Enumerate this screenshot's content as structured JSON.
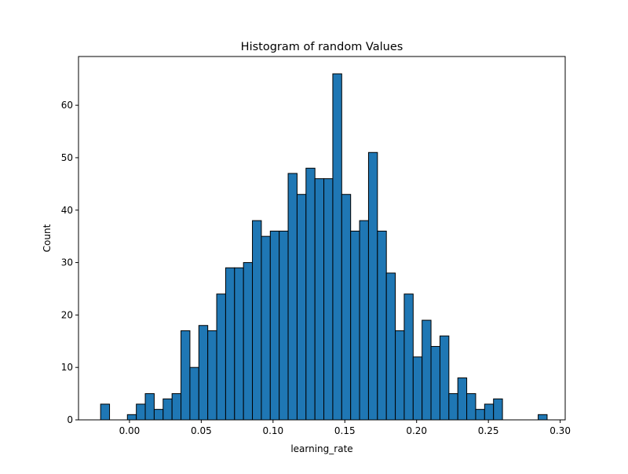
{
  "chart_data": {
    "type": "bar",
    "title": "Histogram of random Values",
    "xlabel": "learning_rate",
    "ylabel": "Count",
    "xlim": [
      -0.0355,
      0.3035
    ],
    "ylim": [
      0,
      69.3
    ],
    "x_ticks": [
      0.0,
      0.05,
      0.1,
      0.15,
      0.2,
      0.25,
      0.3
    ],
    "x_tick_labels": [
      "0.00",
      "0.05",
      "0.10",
      "0.15",
      "0.20",
      "0.25",
      "0.30"
    ],
    "y_ticks": [
      0,
      10,
      20,
      30,
      40,
      50,
      60
    ],
    "y_tick_labels": [
      "0",
      "10",
      "20",
      "30",
      "40",
      "50",
      "60"
    ],
    "grid": false,
    "bin_edges": [
      -0.0201,
      -0.01388,
      -0.00766,
      -0.00144,
      0.00478,
      0.011,
      0.01722,
      0.02344,
      0.02966,
      0.03588,
      0.0421,
      0.04832,
      0.05454,
      0.06076,
      0.06698,
      0.0732,
      0.07942,
      0.08564,
      0.09186,
      0.09808,
      0.1043,
      0.11052,
      0.11674,
      0.12296,
      0.12918,
      0.1354,
      0.14162,
      0.14784,
      0.15406,
      0.16028,
      0.1665,
      0.17272,
      0.17894,
      0.18516,
      0.19138,
      0.1976,
      0.20382,
      0.21004,
      0.21626,
      0.22248,
      0.2287,
      0.23492,
      0.24114,
      0.24736,
      0.25358,
      0.2598,
      0.26602,
      0.27224,
      0.27846,
      0.28468,
      0.2909
    ],
    "values": [
      3,
      0,
      0,
      1,
      3,
      5,
      2,
      4,
      5,
      17,
      10,
      18,
      17,
      24,
      29,
      29,
      30,
      38,
      35,
      36,
      36,
      47,
      43,
      48,
      46,
      46,
      66,
      43,
      36,
      38,
      51,
      36,
      28,
      17,
      24,
      12,
      19,
      14,
      16,
      5,
      8,
      5,
      2,
      3,
      4,
      0,
      0,
      0,
      0,
      1
    ],
    "bar_color": "#1f77b4",
    "edge_color": "#000000"
  }
}
